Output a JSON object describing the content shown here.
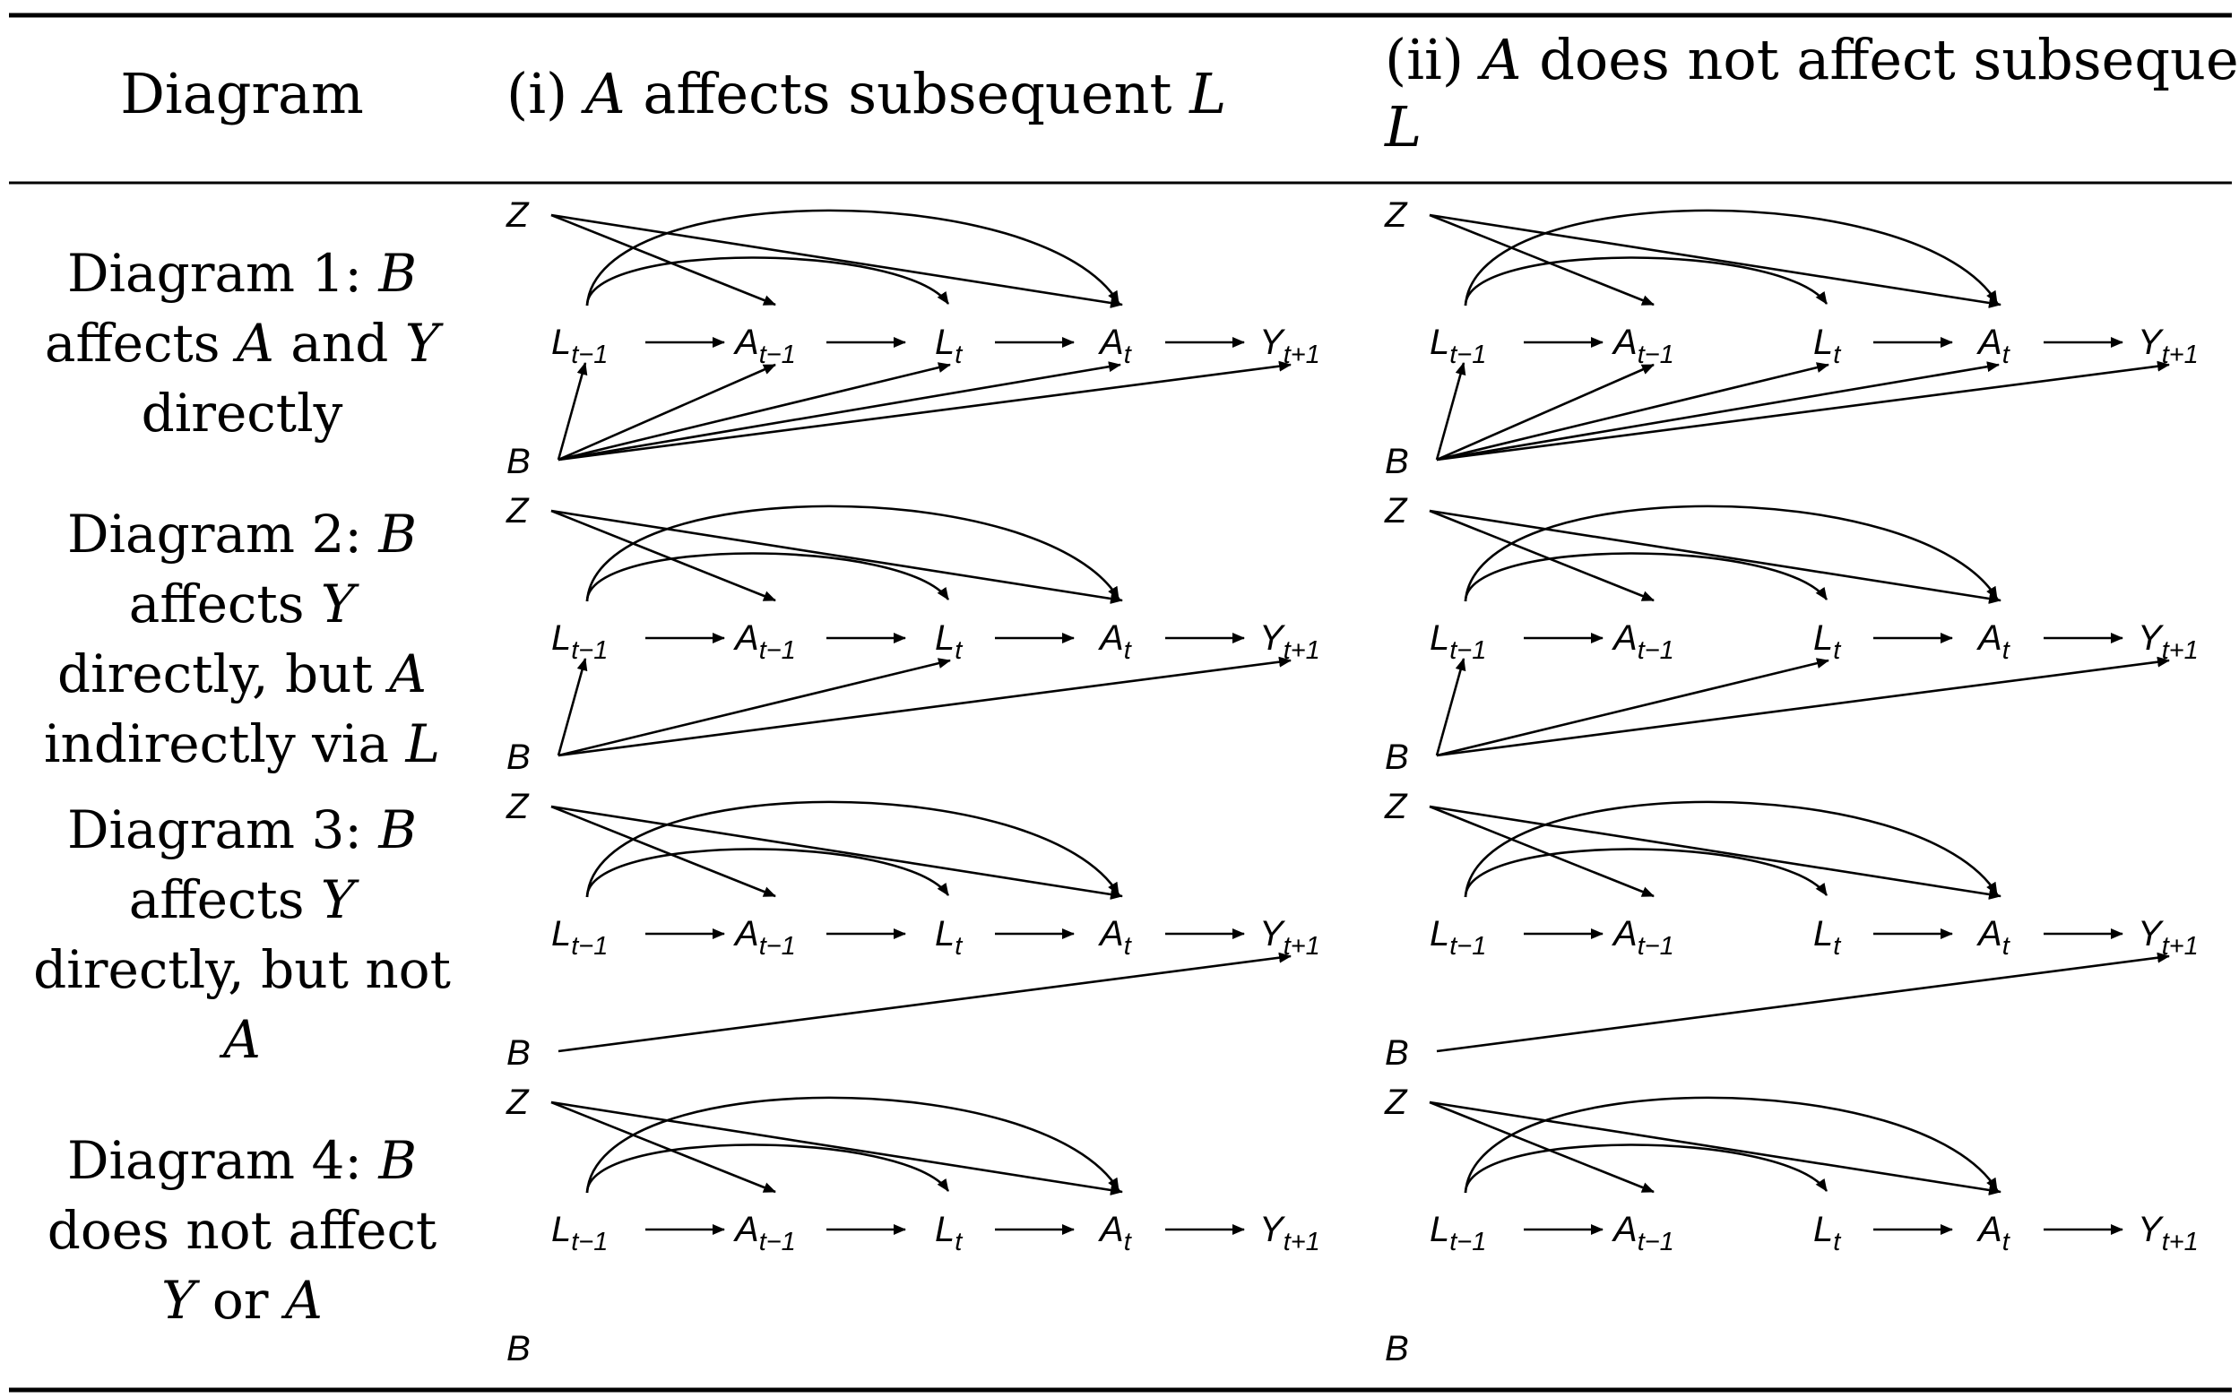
{
  "table": {
    "header": {
      "col0": "Diagram",
      "col1_prefix": "(i) ",
      "col1_var": "A",
      "col1_mid": " affects subsequent ",
      "col1_var2": "L",
      "col2_prefix": "(ii) ",
      "col2_var": "A",
      "col2_mid": " does not affect subsequent",
      "col2_var2": "L"
    },
    "rows": [
      {
        "id": "d1",
        "label_lines": [
          [
            {
              "t": "Diagram 1: "
            },
            {
              "t": "B",
              "i": true
            }
          ],
          [
            {
              "t": "affects "
            },
            {
              "t": "A",
              "i": true
            },
            {
              "t": " and "
            },
            {
              "t": "Y",
              "i": true
            }
          ],
          [
            {
              "t": "directly"
            }
          ]
        ],
        "b_targets": [
          "L_t-1",
          "A_t-1",
          "L_t",
          "A_t",
          "Y_t+1"
        ]
      },
      {
        "id": "d2",
        "label_lines": [
          [
            {
              "t": "Diagram 2: "
            },
            {
              "t": "B",
              "i": true
            }
          ],
          [
            {
              "t": "affects "
            },
            {
              "t": "Y",
              "i": true
            }
          ],
          [
            {
              "t": "directly, but "
            },
            {
              "t": "A",
              "i": true
            }
          ],
          [
            {
              "t": "indirectly via "
            },
            {
              "t": "L",
              "i": true
            }
          ]
        ],
        "b_targets": [
          "L_t-1",
          "L_t",
          "Y_t+1"
        ]
      },
      {
        "id": "d3",
        "label_lines": [
          [
            {
              "t": "Diagram 3: "
            },
            {
              "t": "B",
              "i": true
            }
          ],
          [
            {
              "t": "affects "
            },
            {
              "t": "Y",
              "i": true
            }
          ],
          [
            {
              "t": "directly, but not"
            }
          ],
          [
            {
              "t": "A",
              "i": true
            }
          ]
        ],
        "b_targets": [
          "Y_t+1"
        ]
      },
      {
        "id": "d4",
        "label_lines": [
          [
            {
              "t": "Diagram 4: "
            },
            {
              "t": "B",
              "i": true
            }
          ],
          [
            {
              "t": "does not affect"
            }
          ],
          [
            {
              "t": "Y",
              "i": true
            },
            {
              "t": " or "
            },
            {
              "t": "A",
              "i": true
            }
          ]
        ],
        "b_targets": []
      }
    ]
  },
  "nodes": {
    "Z": {
      "base": "Z",
      "sub": ""
    },
    "B": {
      "base": "B",
      "sub": ""
    },
    "L_t-1": {
      "base": "L",
      "sub": "t−1"
    },
    "A_t-1": {
      "base": "A",
      "sub": "t−1"
    },
    "L_t": {
      "base": "L",
      "sub": "t"
    },
    "A_t": {
      "base": "A",
      "sub": "t"
    },
    "Y_t+1": {
      "base": "Y",
      "sub": "t+1"
    }
  },
  "columns": [
    {
      "id": "i",
      "A_t-1_affects_L_t": true
    },
    {
      "id": "ii",
      "A_t-1_affects_L_t": false
    }
  ],
  "common_edges": [
    [
      "Z",
      "A_t-1"
    ],
    [
      "Z",
      "A_t"
    ],
    [
      "L_t-1",
      "L_t"
    ],
    [
      "L_t-1",
      "A_t"
    ],
    [
      "L_t-1",
      "A_t-1"
    ],
    [
      "L_t",
      "A_t"
    ],
    [
      "A_t",
      "Y_t+1"
    ]
  ]
}
